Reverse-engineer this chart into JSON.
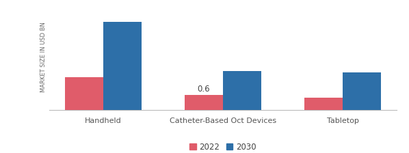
{
  "categories": [
    "Handheld",
    "Catheter-Based Oct Devices",
    "Tabletop"
  ],
  "values_2022": [
    1.3,
    0.6,
    0.5
  ],
  "values_2030": [
    3.5,
    1.55,
    1.5
  ],
  "color_2022": "#e05c6a",
  "color_2030": "#2d6fa8",
  "ylabel": "MARKET SIZE IN USD BN",
  "legend_labels": [
    "2022",
    "2030"
  ],
  "annotation_text": "0.6",
  "annotation_category_idx": 1,
  "bar_width": 0.32,
  "ylim": [
    0,
    4.2
  ],
  "background_color": "#ffffff",
  "ylabel_fontsize": 6.0,
  "xlabel_fontsize": 8.0,
  "annotation_fontsize": 8.5,
  "legend_fontsize": 8.5
}
